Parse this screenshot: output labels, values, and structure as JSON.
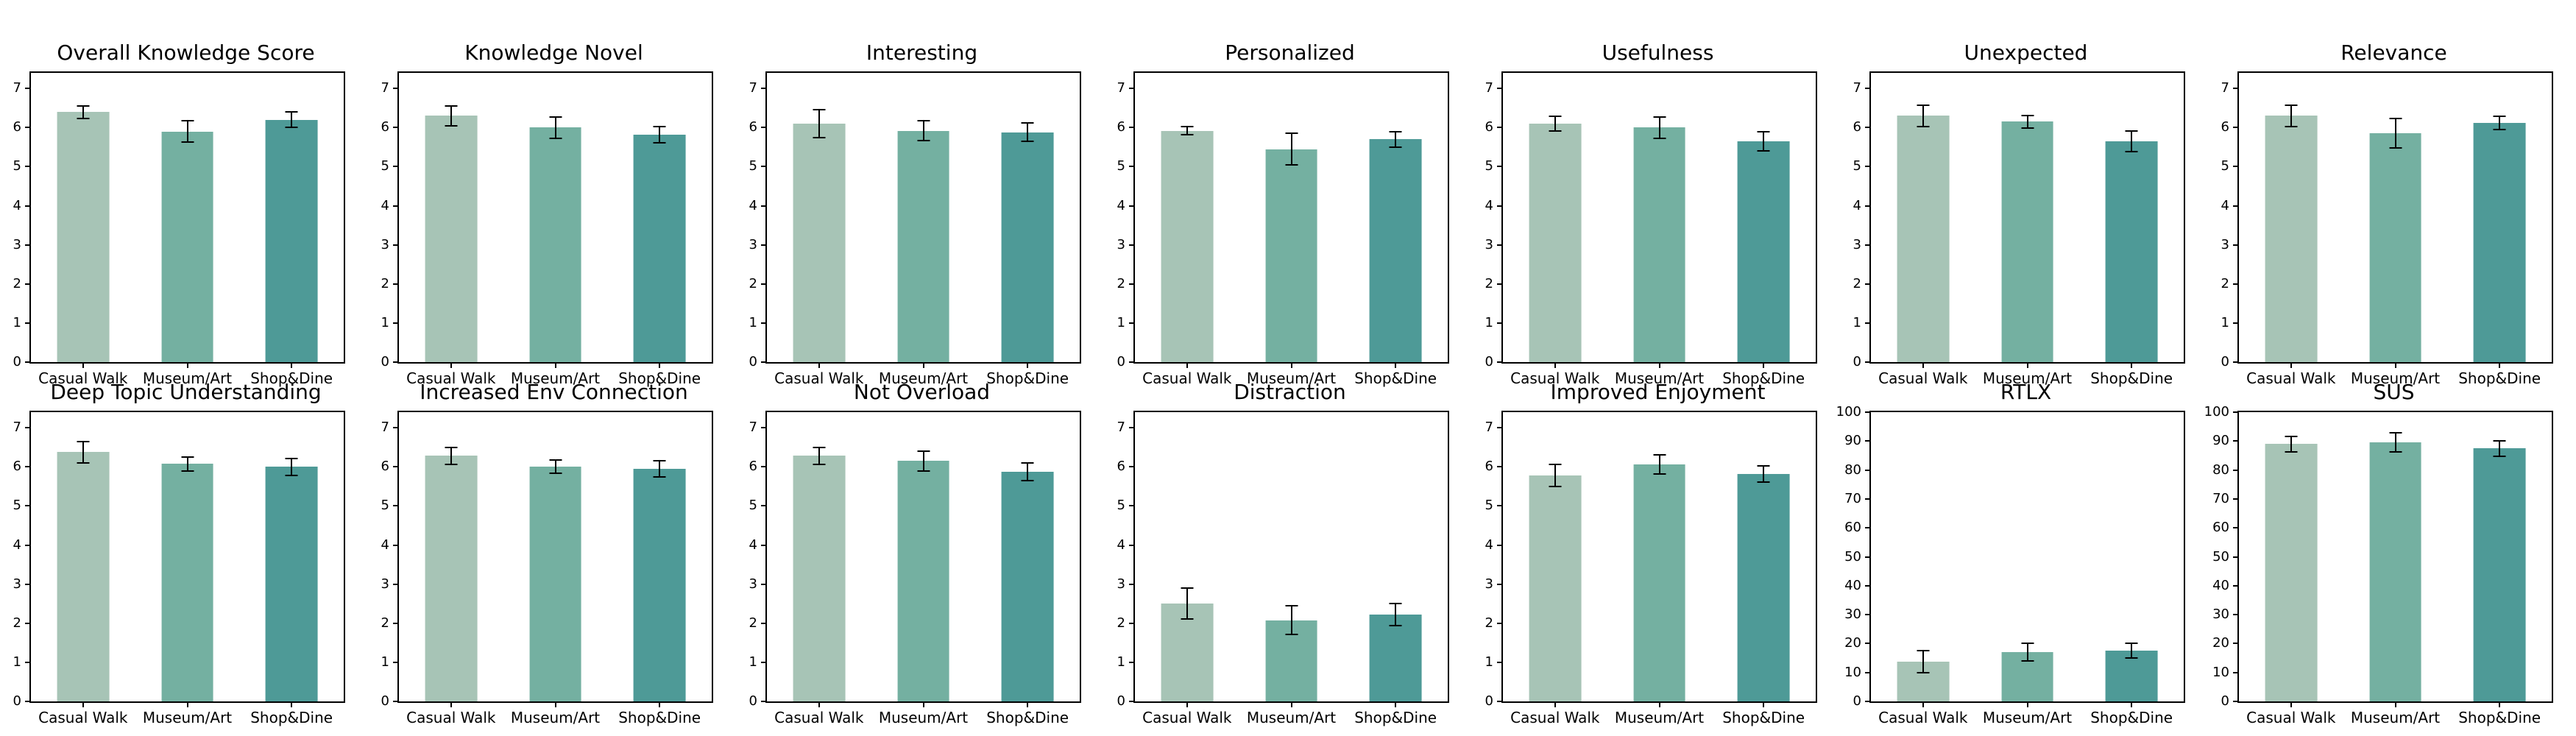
{
  "figure": {
    "background": "#ffffff",
    "bar_colors": [
      "#a7c4b6",
      "#74b0a1",
      "#4e9a97"
    ],
    "axis_color": "#000000",
    "categories": [
      "Casual Walk",
      "Museum/Art",
      "Shop&Dine"
    ]
  },
  "chart_data": [
    {
      "type": "bar",
      "title": "Overall Knowledge Score",
      "categories": [
        "Casual Walk",
        "Museum/Art",
        "Shop&Dine"
      ],
      "values": [
        6.4,
        5.9,
        6.2
      ],
      "errors": [
        0.16,
        0.27,
        0.2
      ],
      "ylim": [
        0,
        7.4
      ],
      "yticks": [
        0,
        1,
        2,
        3,
        4,
        5,
        6,
        7
      ],
      "xlabel": "",
      "ylabel": "",
      "grid": false,
      "legend": "none"
    },
    {
      "type": "bar",
      "title": "Knowledge Novel",
      "categories": [
        "Casual Walk",
        "Museum/Art",
        "Shop&Dine"
      ],
      "values": [
        6.3,
        6.0,
        5.82
      ],
      "errors": [
        0.26,
        0.27,
        0.2
      ],
      "ylim": [
        0,
        7.4
      ],
      "yticks": [
        0,
        1,
        2,
        3,
        4,
        5,
        6,
        7
      ],
      "xlabel": "",
      "ylabel": "",
      "grid": false,
      "legend": "none"
    },
    {
      "type": "bar",
      "title": "Interesting",
      "categories": [
        "Casual Walk",
        "Museum/Art",
        "Shop&Dine"
      ],
      "values": [
        6.1,
        5.92,
        5.88
      ],
      "errors": [
        0.35,
        0.26,
        0.24
      ],
      "ylim": [
        0,
        7.4
      ],
      "yticks": [
        0,
        1,
        2,
        3,
        4,
        5,
        6,
        7
      ],
      "xlabel": "",
      "ylabel": "",
      "grid": false,
      "legend": "none"
    },
    {
      "type": "bar",
      "title": "Personalized",
      "categories": [
        "Casual Walk",
        "Museum/Art",
        "Shop&Dine"
      ],
      "values": [
        5.92,
        5.45,
        5.7
      ],
      "errors": [
        0.11,
        0.4,
        0.2
      ],
      "ylim": [
        0,
        7.4
      ],
      "yticks": [
        0,
        1,
        2,
        3,
        4,
        5,
        6,
        7
      ],
      "xlabel": "",
      "ylabel": "",
      "grid": false,
      "legend": "none"
    },
    {
      "type": "bar",
      "title": "Usefulness",
      "categories": [
        "Casual Walk",
        "Museum/Art",
        "Shop&Dine"
      ],
      "values": [
        6.1,
        6.0,
        5.65
      ],
      "errors": [
        0.19,
        0.27,
        0.24
      ],
      "ylim": [
        0,
        7.4
      ],
      "yticks": [
        0,
        1,
        2,
        3,
        4,
        5,
        6,
        7
      ],
      "xlabel": "",
      "ylabel": "",
      "grid": false,
      "legend": "none"
    },
    {
      "type": "bar",
      "title": "Unexpected",
      "categories": [
        "Casual Walk",
        "Museum/Art",
        "Shop&Dine"
      ],
      "values": [
        6.3,
        6.15,
        5.65
      ],
      "errors": [
        0.27,
        0.16,
        0.26
      ],
      "ylim": [
        0,
        7.4
      ],
      "yticks": [
        0,
        1,
        2,
        3,
        4,
        5,
        6,
        7
      ],
      "xlabel": "",
      "ylabel": "",
      "grid": false,
      "legend": "none"
    },
    {
      "type": "bar",
      "title": "Relevance",
      "categories": [
        "Casual Walk",
        "Museum/Art",
        "Shop&Dine"
      ],
      "values": [
        6.3,
        5.85,
        6.12
      ],
      "errors": [
        0.27,
        0.38,
        0.17
      ],
      "ylim": [
        0,
        7.4
      ],
      "yticks": [
        0,
        1,
        2,
        3,
        4,
        5,
        6,
        7
      ],
      "xlabel": "",
      "ylabel": "",
      "grid": false,
      "legend": "none"
    },
    {
      "type": "bar",
      "title": "Deep Topic Understanding",
      "categories": [
        "Casual Walk",
        "Museum/Art",
        "Shop&Dine"
      ],
      "values": [
        6.38,
        6.08,
        6.0
      ],
      "errors": [
        0.27,
        0.18,
        0.21
      ],
      "ylim": [
        0,
        7.4
      ],
      "yticks": [
        0,
        1,
        2,
        3,
        4,
        5,
        6,
        7
      ],
      "xlabel": "",
      "ylabel": "",
      "grid": false,
      "legend": "none"
    },
    {
      "type": "bar",
      "title": "Increased Env Connection",
      "categories": [
        "Casual Walk",
        "Museum/Art",
        "Shop&Dine"
      ],
      "values": [
        6.28,
        6.0,
        5.95
      ],
      "errors": [
        0.22,
        0.17,
        0.2
      ],
      "ylim": [
        0,
        7.4
      ],
      "yticks": [
        0,
        1,
        2,
        3,
        4,
        5,
        6,
        7
      ],
      "xlabel": "",
      "ylabel": "",
      "grid": false,
      "legend": "none"
    },
    {
      "type": "bar",
      "title": "Not Overload",
      "categories": [
        "Casual Walk",
        "Museum/Art",
        "Shop&Dine"
      ],
      "values": [
        6.28,
        6.15,
        5.87
      ],
      "errors": [
        0.21,
        0.25,
        0.23
      ],
      "ylim": [
        0,
        7.4
      ],
      "yticks": [
        0,
        1,
        2,
        3,
        4,
        5,
        6,
        7
      ],
      "xlabel": "",
      "ylabel": "",
      "grid": false,
      "legend": "none"
    },
    {
      "type": "bar",
      "title": "Distraction",
      "categories": [
        "Casual Walk",
        "Museum/Art",
        "Shop&Dine"
      ],
      "values": [
        2.5,
        2.08,
        2.22
      ],
      "errors": [
        0.4,
        0.37,
        0.28
      ],
      "ylim": [
        0,
        7.4
      ],
      "yticks": [
        0,
        1,
        2,
        3,
        4,
        5,
        6,
        7
      ],
      "xlabel": "",
      "ylabel": "",
      "grid": false,
      "legend": "none"
    },
    {
      "type": "bar",
      "title": "Improved Enjoyment",
      "categories": [
        "Casual Walk",
        "Museum/Art",
        "Shop&Dine"
      ],
      "values": [
        5.78,
        6.06,
        5.82
      ],
      "errors": [
        0.28,
        0.25,
        0.21
      ],
      "ylim": [
        0,
        7.4
      ],
      "yticks": [
        0,
        1,
        2,
        3,
        4,
        5,
        6,
        7
      ],
      "xlabel": "",
      "ylabel": "",
      "grid": false,
      "legend": "none"
    },
    {
      "type": "bar",
      "title": "RTLX",
      "categories": [
        "Casual Walk",
        "Museum/Art",
        "Shop&Dine"
      ],
      "values": [
        13.8,
        17.1,
        17.6
      ],
      "errors": [
        3.8,
        3.1,
        2.6
      ],
      "ylim": [
        0,
        100
      ],
      "yticks": [
        0,
        10,
        20,
        30,
        40,
        50,
        60,
        70,
        80,
        90,
        100
      ],
      "xlabel": "",
      "ylabel": "",
      "grid": false,
      "legend": "none"
    },
    {
      "type": "bar",
      "title": "SUS",
      "categories": [
        "Casual Walk",
        "Museum/Art",
        "Shop&Dine"
      ],
      "values": [
        89.0,
        89.5,
        87.5
      ],
      "errors": [
        2.7,
        3.3,
        2.7
      ],
      "ylim": [
        0,
        100
      ],
      "yticks": [
        0,
        10,
        20,
        30,
        40,
        50,
        60,
        70,
        80,
        90,
        100
      ],
      "xlabel": "",
      "ylabel": "",
      "grid": false,
      "legend": "none"
    }
  ]
}
